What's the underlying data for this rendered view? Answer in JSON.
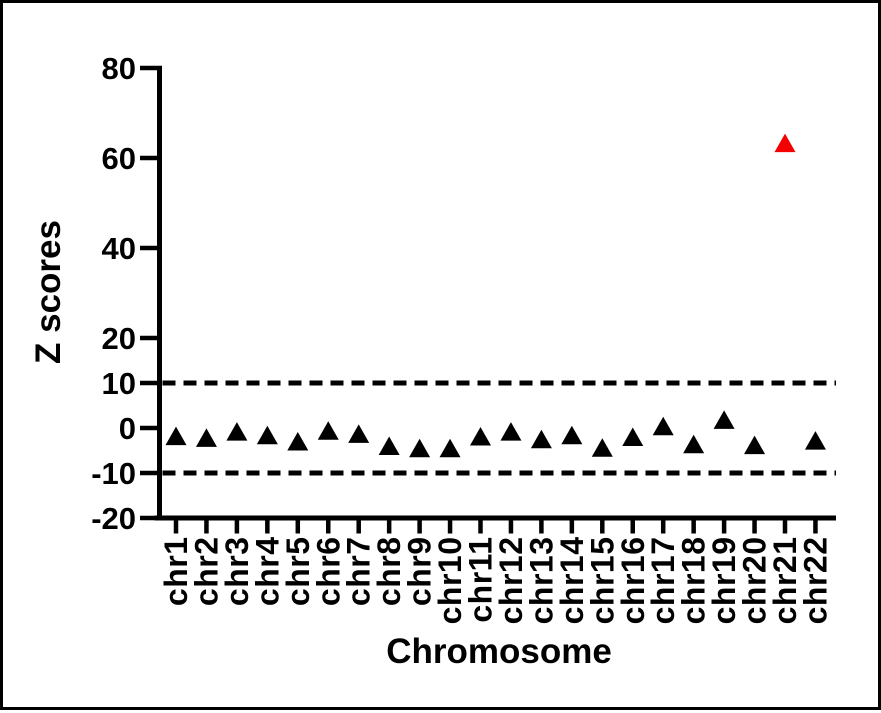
{
  "figure": {
    "background_color": "#ffffff",
    "border_color": "#000000"
  },
  "chart_data": {
    "type": "scatter",
    "title": "",
    "xlabel": "Chromosome",
    "ylabel": "Z scores",
    "marker": "triangle-up",
    "grid": false,
    "legend": "none",
    "ylim": [
      -20,
      80
    ],
    "yticks": [
      80,
      60,
      40,
      20,
      10,
      0,
      -10,
      -20
    ],
    "ytick_labels": [
      "80",
      "60",
      "40",
      "20",
      "10",
      "0",
      "-10",
      "-20"
    ],
    "threshold_lines": {
      "values": [
        10,
        -10
      ],
      "style": "dashed",
      "color": "#000000"
    },
    "categories": [
      "chr1",
      "chr2",
      "chr3",
      "chr4",
      "chr5",
      "chr6",
      "chr7",
      "chr8",
      "chr9",
      "chr10",
      "chr11",
      "chr12",
      "chr13",
      "chr14",
      "chr15",
      "chr16",
      "chr17",
      "chr18",
      "chr19",
      "chr20",
      "chr21",
      "chr22"
    ],
    "values": [
      -1.8,
      -2.2,
      -0.8,
      -1.6,
      -3.0,
      -0.6,
      -1.3,
      -4.0,
      -4.5,
      -4.5,
      -1.9,
      -0.8,
      -2.5,
      -1.6,
      -4.4,
      -2.0,
      0.4,
      -3.6,
      1.8,
      -3.8,
      63.3,
      -2.8
    ],
    "point_colors": [
      "#000000",
      "#000000",
      "#000000",
      "#000000",
      "#000000",
      "#000000",
      "#000000",
      "#000000",
      "#000000",
      "#000000",
      "#000000",
      "#000000",
      "#000000",
      "#000000",
      "#000000",
      "#000000",
      "#000000",
      "#000000",
      "#000000",
      "#000000",
      "#f40000",
      "#000000"
    ],
    "colors": {
      "default_point": "#000000",
      "highlight_point": "#f40000",
      "axis": "#000000"
    },
    "highlight": {
      "category": "chr21",
      "value": 63.3,
      "color": "#f40000"
    }
  }
}
